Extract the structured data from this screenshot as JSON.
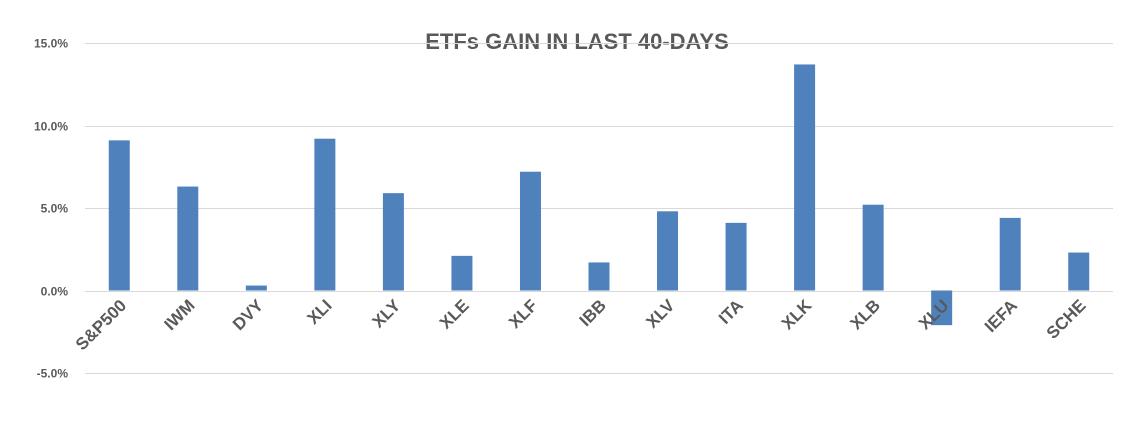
{
  "chart_data": {
    "type": "bar",
    "title": "ETFs GAIN IN LAST 40-DAYS",
    "xlabel": "",
    "ylabel": "",
    "categories": [
      "S&P500",
      "IWM",
      "DVY",
      "XLI",
      "XLY",
      "XLE",
      "XLF",
      "IBB",
      "XLV",
      "ITA",
      "XLK",
      "XLB",
      "XLU",
      "IEFA",
      "SCHE"
    ],
    "values": [
      9.1,
      6.3,
      0.3,
      9.2,
      5.9,
      2.1,
      7.2,
      1.7,
      4.8,
      4.1,
      13.7,
      5.2,
      -2.1,
      4.4,
      2.3
    ],
    "ylim": [
      -5,
      15
    ],
    "yticks": [
      15,
      10,
      5,
      0,
      -5
    ],
    "ytick_labels": [
      "15.0%",
      "10.0%",
      "5.0%",
      "0.0%",
      "-5.0%"
    ],
    "grid": true,
    "bar_color": "#4f81bd"
  }
}
